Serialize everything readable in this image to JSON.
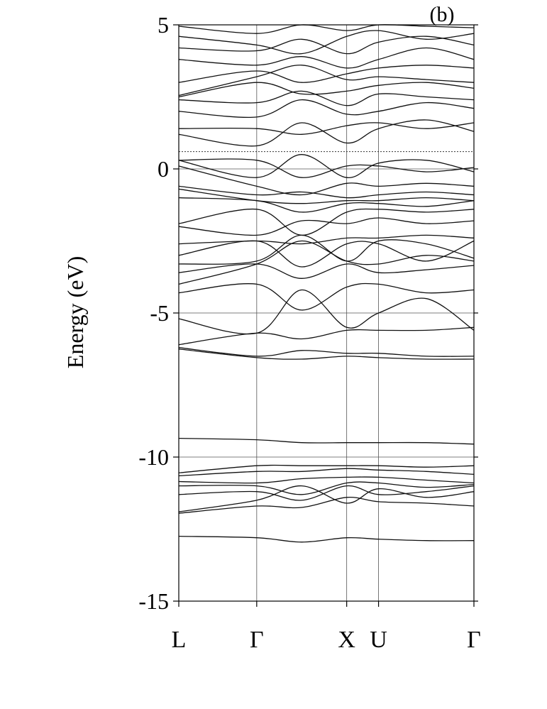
{
  "chart_data": {
    "type": "line",
    "title": "",
    "panel_label": "(b)",
    "xlabel": "",
    "ylabel": "Energy (eV)",
    "ylim": [
      -15,
      5
    ],
    "yticks": [
      5,
      0,
      -5,
      -10,
      -15
    ],
    "ytick_labels": [
      "5",
      "0",
      "-5",
      "-10",
      "-15"
    ],
    "grid": true,
    "legend": "none",
    "k_points": [
      {
        "label": "L",
        "x": 0.0
      },
      {
        "label": "Γ",
        "x": 0.866
      },
      {
        "label": "X",
        "x": 1.866
      },
      {
        "label": "U",
        "x": 2.22
      },
      {
        "label": "Γ",
        "x": 3.28
      }
    ],
    "reference_lines": [
      {
        "name": "",
        "y": 0.6,
        "style": "dotted"
      }
    ],
    "bands": [
      {
        "name": "",
        "values": [
          -12.75,
          -12.8,
          -12.95,
          -12.8,
          -12.85,
          -12.9,
          -12.9
        ]
      },
      {
        "name": "",
        "values": [
          -11.95,
          -11.7,
          -11.75,
          -11.4,
          -11.55,
          -11.6,
          -11.7
        ]
      },
      {
        "name": "",
        "values": [
          -11.9,
          -11.5,
          -11.0,
          -11.6,
          -11.1,
          -11.4,
          -11.2
        ]
      },
      {
        "name": "",
        "values": [
          -11.3,
          -11.2,
          -11.5,
          -11.0,
          -11.3,
          -11.2,
          -11.0
        ]
      },
      {
        "name": "",
        "values": [
          -11.0,
          -11.0,
          -11.3,
          -10.9,
          -10.9,
          -11.05,
          -10.95
        ]
      },
      {
        "name": "",
        "values": [
          -10.85,
          -10.9,
          -10.75,
          -10.7,
          -10.7,
          -10.8,
          -10.9
        ]
      },
      {
        "name": "",
        "values": [
          -10.65,
          -10.5,
          -10.5,
          -10.4,
          -10.45,
          -10.5,
          -10.6
        ]
      },
      {
        "name": "",
        "values": [
          -10.55,
          -10.3,
          -10.3,
          -10.3,
          -10.3,
          -10.35,
          -10.3
        ]
      },
      {
        "name": "",
        "values": [
          -9.35,
          -9.4,
          -9.5,
          -9.5,
          -9.5,
          -9.5,
          -9.55
        ]
      },
      {
        "name": "",
        "values": [
          -6.25,
          -6.55,
          -6.6,
          -6.5,
          -6.55,
          -6.6,
          -6.6
        ]
      },
      {
        "name": "",
        "values": [
          -6.2,
          -6.5,
          -6.3,
          -6.4,
          -6.4,
          -6.5,
          -6.5
        ]
      },
      {
        "name": "",
        "values": [
          -6.1,
          -5.7,
          -5.9,
          -5.6,
          -5.6,
          -5.6,
          -5.5
        ]
      },
      {
        "name": "",
        "values": [
          -5.2,
          -5.7,
          -4.2,
          -5.5,
          -5.0,
          -4.5,
          -5.6
        ]
      },
      {
        "name": "",
        "values": [
          -4.3,
          -4.0,
          -4.9,
          -4.1,
          -4.0,
          -4.3,
          -4.2
        ]
      },
      {
        "name": "",
        "values": [
          -4.0,
          -3.3,
          -2.5,
          -3.2,
          -3.3,
          -3.0,
          -3.2
        ]
      },
      {
        "name": "",
        "values": [
          -3.6,
          -3.3,
          -3.8,
          -3.3,
          -3.6,
          -3.5,
          -3.35
        ]
      },
      {
        "name": "",
        "values": [
          -3.3,
          -3.2,
          -2.3,
          -3.2,
          -2.5,
          -2.6,
          -3.1
        ]
      },
      {
        "name": "",
        "values": [
          -3.0,
          -2.5,
          -3.4,
          -2.6,
          -2.6,
          -3.2,
          -2.5
        ]
      },
      {
        "name": "",
        "values": [
          -2.6,
          -2.5,
          -2.6,
          -2.4,
          -2.4,
          -2.3,
          -2.4
        ]
      },
      {
        "name": "",
        "values": [
          -2.0,
          -2.3,
          -1.8,
          -1.9,
          -1.7,
          -1.9,
          -1.8
        ]
      },
      {
        "name": "",
        "values": [
          -1.9,
          -1.4,
          -2.3,
          -1.5,
          -1.4,
          -1.5,
          -1.4
        ]
      },
      {
        "name": "",
        "values": [
          -1.0,
          -1.1,
          -1.5,
          -1.2,
          -1.2,
          -1.3,
          -1.1
        ]
      },
      {
        "name": "",
        "values": [
          -0.7,
          -1.1,
          -1.2,
          -1.1,
          -1.1,
          -1.0,
          -1.1
        ]
      },
      {
        "name": "",
        "values": [
          -0.6,
          -0.9,
          -0.8,
          -1.0,
          -0.9,
          -0.8,
          -0.9
        ]
      },
      {
        "name": "",
        "values": [
          0.1,
          -0.6,
          -0.9,
          -0.5,
          -0.6,
          -0.5,
          -0.6
        ]
      },
      {
        "name": "",
        "values": [
          0.3,
          -0.3,
          0.5,
          -0.3,
          0.2,
          0.3,
          -0.1
        ]
      },
      {
        "name": "",
        "values": [
          0.3,
          0.3,
          -0.3,
          0.1,
          0.1,
          -0.1,
          0.05
        ]
      },
      {
        "name": "",
        "values": [
          1.2,
          0.8,
          1.6,
          0.9,
          1.4,
          1.7,
          1.3
        ]
      },
      {
        "name": "",
        "values": [
          1.4,
          1.4,
          1.2,
          1.5,
          1.6,
          1.4,
          1.6
        ]
      },
      {
        "name": "",
        "values": [
          2.0,
          1.8,
          2.4,
          1.9,
          2.0,
          2.3,
          2.1
        ]
      },
      {
        "name": "",
        "values": [
          2.4,
          2.3,
          2.7,
          2.2,
          2.6,
          2.5,
          2.4
        ]
      },
      {
        "name": "",
        "values": [
          2.5,
          3.0,
          2.6,
          2.7,
          2.9,
          3.0,
          2.8
        ]
      },
      {
        "name": "",
        "values": [
          2.55,
          3.2,
          3.6,
          3.1,
          3.2,
          3.1,
          3.0
        ]
      },
      {
        "name": "",
        "values": [
          3.0,
          3.4,
          3.0,
          3.3,
          3.5,
          3.6,
          3.5
        ]
      },
      {
        "name": "",
        "values": [
          3.8,
          3.6,
          3.9,
          3.5,
          3.8,
          4.2,
          3.8
        ]
      },
      {
        "name": "",
        "values": [
          4.2,
          4.1,
          4.5,
          4.0,
          4.4,
          4.6,
          4.3
        ]
      },
      {
        "name": "",
        "values": [
          4.6,
          4.3,
          4.0,
          4.6,
          4.8,
          4.5,
          4.7
        ]
      },
      {
        "name": "",
        "values": [
          4.95,
          4.7,
          5.0,
          4.8,
          5.0,
          4.95,
          4.9
        ]
      }
    ],
    "band_sample_x": [
      0.0,
      0.866,
      1.366,
      1.866,
      2.22,
      2.75,
      3.28
    ]
  }
}
